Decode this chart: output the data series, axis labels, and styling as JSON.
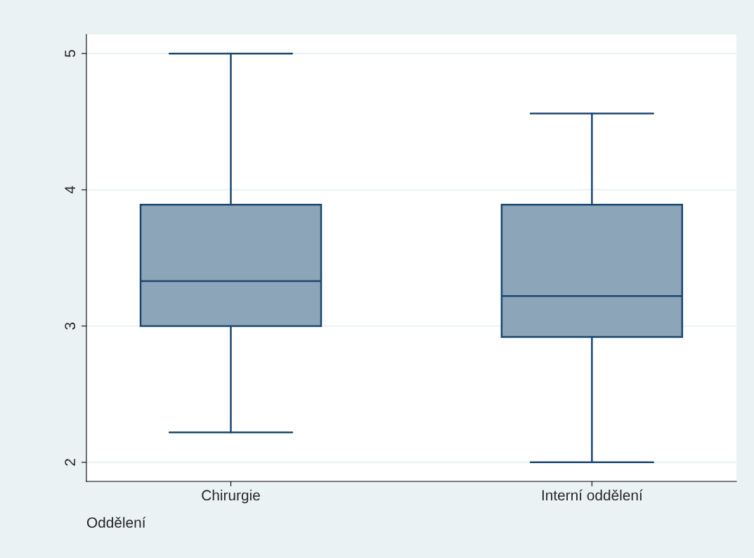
{
  "chart_data": {
    "type": "box",
    "categories": [
      "Chirurgie",
      "Interní oddělení"
    ],
    "xlabel": "Oddělení",
    "color": "#8ca5b9",
    "boxes": [
      {
        "low": 2.22,
        "q1": 3.0,
        "median": 3.33,
        "q3": 3.89,
        "high": 5.0
      },
      {
        "low": 2.0,
        "q1": 2.92,
        "median": 3.22,
        "q3": 3.89,
        "high": 4.56
      }
    ],
    "ylim": [
      1.86,
      5.14
    ],
    "yticks": [
      2,
      3,
      4,
      5
    ],
    "grid": "y",
    "legend": false
  }
}
